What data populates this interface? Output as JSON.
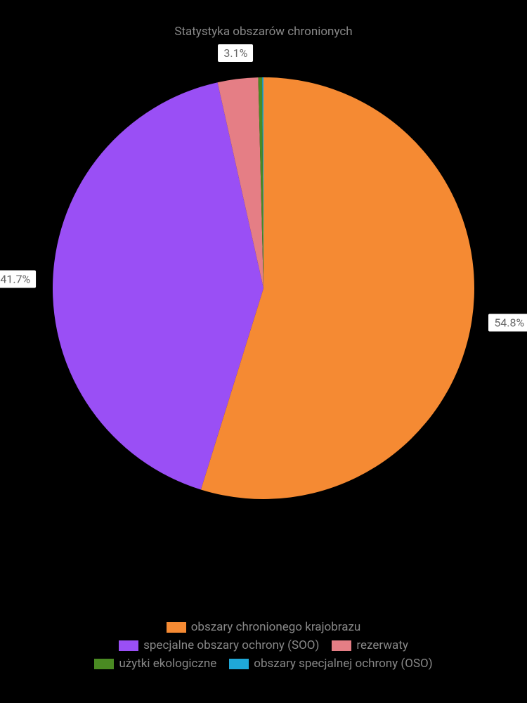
{
  "chart": {
    "type": "pie",
    "title": "Statystyka obszarów chronionych",
    "title_color": "#888888",
    "title_fontsize": 17,
    "background_color": "#000000",
    "pie_radius": 300,
    "label_bg": "#ffffff",
    "label_color": "#666666",
    "label_fontsize": 16,
    "legend_color": "#888888",
    "legend_fontsize": 17,
    "slices": [
      {
        "name": "obszary chronionego krajobrazu",
        "value": 54.8,
        "color": "#f58a33",
        "show_label": true
      },
      {
        "name": "specjalne obszary ochrony (SOO)",
        "value": 41.7,
        "color": "#9a4ff5",
        "show_label": true
      },
      {
        "name": "rezerwaty",
        "value": 3.1,
        "color": "#e57e85",
        "show_label": true
      },
      {
        "name": "użytki ekologiczne",
        "value": 0.3,
        "color": "#4a8a22",
        "show_label": false
      },
      {
        "name": "obszary specjalnej ochrony (OSO)",
        "value": 0.1,
        "color": "#1fa8d8",
        "show_label": false
      }
    ],
    "legend_rows": [
      [
        0
      ],
      [
        1,
        2
      ],
      [
        3,
        4
      ]
    ]
  }
}
